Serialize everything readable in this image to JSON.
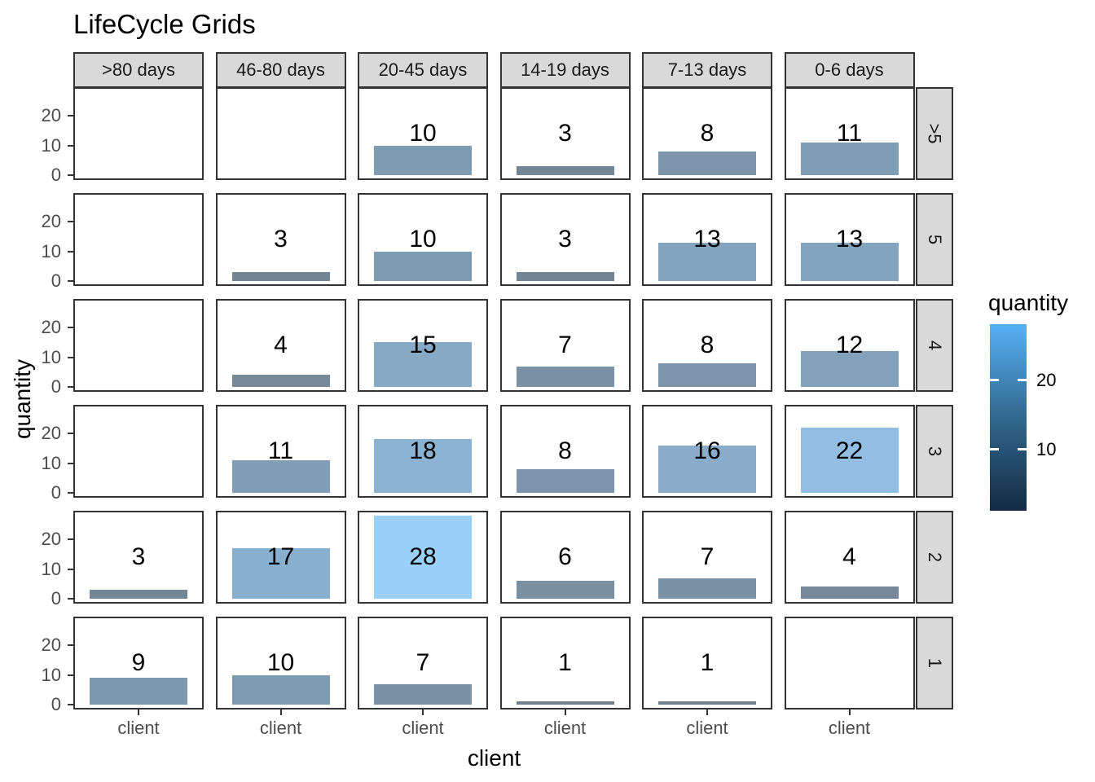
{
  "chart_data": {
    "type": "bar",
    "title": "LifeCycle Grids",
    "xlabel": "client",
    "ylabel": "quantity",
    "x_tick_label": "client",
    "column_facets": [
      ">80 days",
      "46-80 days",
      "20-45 days",
      "14-19 days",
      "7-13 days",
      "0-6 days"
    ],
    "row_facets": [
      ">5",
      "5",
      "4",
      "3",
      "2",
      "1"
    ],
    "y_ticks": [
      20,
      10,
      0
    ],
    "ylim": [
      -1.4,
      29.4
    ],
    "grid": "off",
    "legend_position": "right",
    "series": [
      {
        "row_facet": ">5",
        "values": [
          null,
          null,
          10,
          3,
          8,
          11
        ]
      },
      {
        "row_facet": "5",
        "values": [
          null,
          3,
          10,
          3,
          13,
          13
        ]
      },
      {
        "row_facet": "4",
        "values": [
          null,
          4,
          15,
          7,
          8,
          12
        ]
      },
      {
        "row_facet": "3",
        "values": [
          null,
          11,
          18,
          8,
          16,
          22
        ]
      },
      {
        "row_facet": "2",
        "values": [
          3,
          17,
          28,
          6,
          7,
          4
        ]
      },
      {
        "row_facet": "1",
        "values": [
          9,
          10,
          7,
          1,
          1,
          null
        ]
      }
    ],
    "legend": {
      "title": "quantity",
      "tick_labels": [
        20,
        10
      ],
      "domain": [
        1,
        28
      ],
      "gradient_top": "#56B1F7",
      "gradient_mid": "#31688E",
      "gradient_bottom": "#132B43"
    },
    "bar_colors": {
      "1": "#71808E",
      "3": "#748696",
      "4": "#76889A",
      "6": "#798FA2",
      "7": "#7A92A6",
      "8": "#7C95AA",
      "9": "#7D98AE",
      "10": "#7F9BB2",
      "11": "#809EB6",
      "12": "#82A1BA",
      "13": "#83A4BE",
      "15": "#86A9C6",
      "16": "#88ACCA",
      "17": "#89AFCE",
      "18": "#8BB2D2",
      "22": "#91BEE2",
      "28": "#9AD0FA"
    }
  },
  "style_colors": {
    "strip_fill": "#D9D9D9",
    "panel_border": "#333333",
    "axis_text": "#4D4D4D",
    "label_text": "#000000",
    "background": "#FFFFFF"
  }
}
